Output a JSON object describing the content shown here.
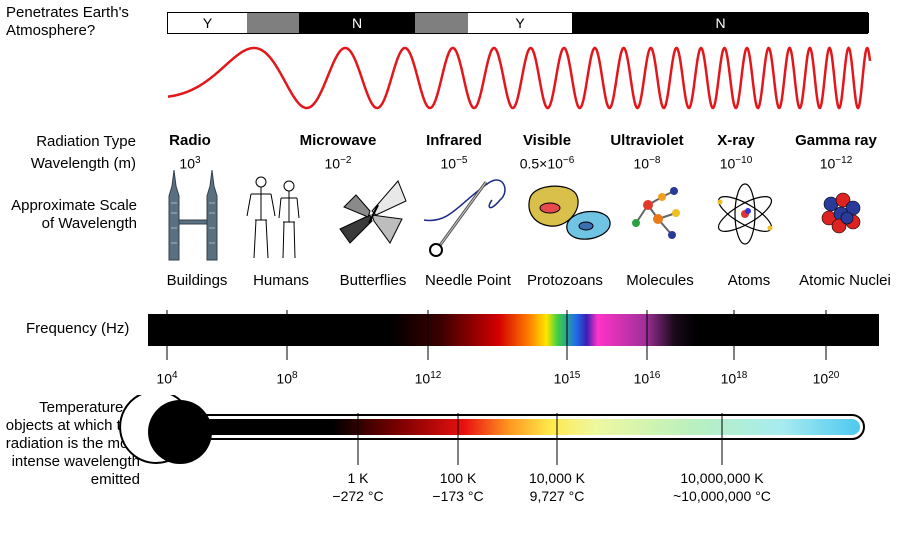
{
  "penetrates": {
    "label": "Penetrates Earth's Atmosphere?",
    "segments": [
      {
        "label": "Y",
        "style": "white"
      },
      {
        "label": "",
        "style": "gray"
      },
      {
        "label": "N",
        "style": "black"
      },
      {
        "label": "",
        "style": "gray"
      },
      {
        "label": "Y",
        "style": "white"
      },
      {
        "label": "N",
        "style": "black"
      }
    ]
  },
  "row_labels": {
    "radiation_type": "Radiation Type",
    "wavelength": "Wavelength (m)",
    "scale": "Approximate Scale of Wavelength",
    "frequency": "Frequency (Hz)",
    "temperature": "Temperature of objects at which this radiation is the most intense wavelength emitted"
  },
  "radiation": [
    {
      "name": "Radio",
      "wl_base": "10",
      "wl_exp": "3"
    },
    {
      "name": "Microwave",
      "wl_base": "10",
      "wl_exp": "−2"
    },
    {
      "name": "Infrared",
      "wl_base": "10",
      "wl_exp": "−5"
    },
    {
      "name": "Visible",
      "wl_base": "0.5×10",
      "wl_exp": "−6"
    },
    {
      "name": "Ultraviolet",
      "wl_base": "10",
      "wl_exp": "−8"
    },
    {
      "name": "X-ray",
      "wl_base": "10",
      "wl_exp": "−10"
    },
    {
      "name": "Gamma ray",
      "wl_base": "10",
      "wl_exp": "−12"
    }
  ],
  "scale_objects": [
    {
      "label": "Buildings",
      "icon": "buildings-icon"
    },
    {
      "label": "Humans",
      "icon": "humans-icon"
    },
    {
      "label": "Butterflies",
      "icon": "butterfly-icon"
    },
    {
      "label": "Needle Point",
      "icon": "needle-icon"
    },
    {
      "label": "Protozoans",
      "icon": "protozoa-icon"
    },
    {
      "label": "Molecules",
      "icon": "molecule-icon"
    },
    {
      "label": "Atoms",
      "icon": "atom-icon"
    },
    {
      "label": "Atomic Nuclei",
      "icon": "nucleus-icon"
    }
  ],
  "frequency_ticks": [
    {
      "base": "10",
      "exp": "4"
    },
    {
      "base": "10",
      "exp": "8"
    },
    {
      "base": "10",
      "exp": "12"
    },
    {
      "base": "10",
      "exp": "15"
    },
    {
      "base": "10",
      "exp": "16"
    },
    {
      "base": "10",
      "exp": "18"
    },
    {
      "base": "10",
      "exp": "20"
    }
  ],
  "temperature_ticks": [
    {
      "kelvin": "1 K",
      "celsius": "−272 °C"
    },
    {
      "kelvin": "100 K",
      "celsius": "−173 °C"
    },
    {
      "kelvin": "10,000 K",
      "celsius": "9,727 °C"
    },
    {
      "kelvin": "10,000,000 K",
      "celsius": "~10,000,000 °C"
    }
  ],
  "colors": {
    "wave": "#e3171b",
    "bar_black": "#000000",
    "bar_gray": "#7f7f7f",
    "thermometer_outline": "#000000"
  }
}
